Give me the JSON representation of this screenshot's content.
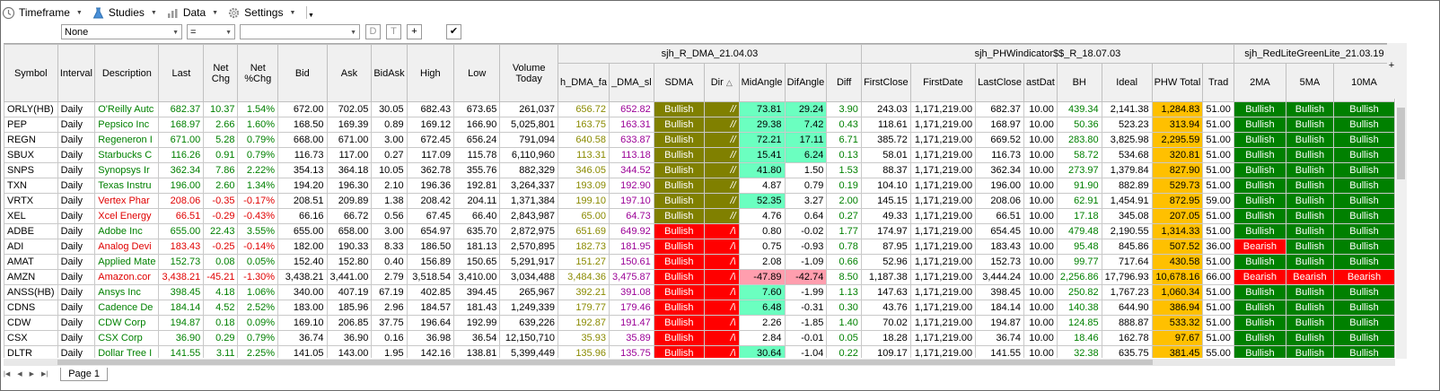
{
  "toolbar": {
    "items": [
      {
        "label": "Timeframe",
        "icon": "clock-icon"
      },
      {
        "label": "Studies",
        "icon": "flask-icon"
      },
      {
        "label": "Data",
        "icon": "bar-chart-icon"
      },
      {
        "label": "Settings",
        "icon": "gear-icon"
      }
    ]
  },
  "filter": {
    "field_value": "None",
    "operator_value": "=",
    "value_value": "",
    "buttons": [
      "D",
      "T",
      "+"
    ],
    "apply_icon": "checkmark-icon"
  },
  "groups": {
    "g1": "sjh_R_DMA_21.04.03",
    "g2": "sjh_PHWindicator$$_R_18.07.03",
    "g3": "sjh_RedLiteGreenLite_21.03.19"
  },
  "columns": [
    "Symbol",
    "Interval",
    "Description",
    "Last",
    "Net Chg",
    "Net %Chg",
    "Bid",
    "Ask",
    "BidAsk",
    "High",
    "Low",
    "Volume Today",
    "h_DMA_fa",
    "_DMA_sl",
    "SDMA",
    "Dir",
    "MidAngle",
    "DifAngle",
    "Diff",
    "FirstClose",
    "FirstDate",
    "LastClose",
    "astDat",
    "BH",
    "Ideal",
    "PHW Total",
    "Trad",
    "2MA",
    "5MA",
    "10MA"
  ],
  "rows": [
    {
      "sym": "ORLY(HB)",
      "int": "Daily",
      "desc": "O'Reilly Autc",
      "last": "682.37",
      "chg": "10.37",
      "pct": "1.54%",
      "bid": "672.00",
      "ask": "702.05",
      "ba": "30.05",
      "high": "682.43",
      "low": "673.65",
      "vol": "261,037",
      "fa": "656.72",
      "sl": "652.82",
      "sdma": "Bullish",
      "dir": "//",
      "mid": "73.81",
      "dif": "29.24",
      "diff": "3.90",
      "fc": "243.03",
      "fd": "1,171,219.00",
      "lc": "682.37",
      "ld": "10.00",
      "bh": "439.34",
      "ideal": "2,141.38",
      "phw": "1,284.83",
      "trad": "51.00",
      "m2": "Bullish",
      "m5": "Bullish",
      "m10": "Bullish",
      "dir_c": "up",
      "mid_bg": true,
      "dif_bg": "aq"
    },
    {
      "sym": "PEP",
      "int": "Daily",
      "desc": "Pepsico Inc",
      "last": "168.97",
      "chg": "2.66",
      "pct": "1.60%",
      "bid": "168.50",
      "ask": "169.39",
      "ba": "0.89",
      "high": "169.12",
      "low": "166.90",
      "vol": "5,025,801",
      "fa": "163.75",
      "sl": "163.31",
      "sdma": "Bullish",
      "dir": "//",
      "mid": "29.38",
      "dif": "7.42",
      "diff": "0.43",
      "fc": "118.61",
      "fd": "1,171,219.00",
      "lc": "168.97",
      "ld": "10.00",
      "bh": "50.36",
      "ideal": "523.23",
      "phw": "313.94",
      "trad": "51.00",
      "m2": "Bullish",
      "m5": "Bullish",
      "m10": "Bullish",
      "dir_c": "up",
      "mid_bg": true,
      "dif_bg": "aq"
    },
    {
      "sym": "REGN",
      "int": "Daily",
      "desc": "Regeneron I",
      "last": "671.00",
      "chg": "5.28",
      "pct": "0.79%",
      "bid": "668.00",
      "ask": "671.00",
      "ba": "3.00",
      "high": "672.45",
      "low": "656.24",
      "vol": "791,094",
      "fa": "640.58",
      "sl": "633.87",
      "sdma": "Bullish",
      "dir": "//",
      "mid": "72.21",
      "dif": "17.11",
      "diff": "6.71",
      "fc": "385.72",
      "fd": "1,171,219.00",
      "lc": "669.52",
      "ld": "10.00",
      "bh": "283.80",
      "ideal": "3,825.98",
      "phw": "2,295.59",
      "trad": "51.00",
      "m2": "Bullish",
      "m5": "Bullish",
      "m10": "Bullish",
      "dir_c": "up",
      "mid_bg": true,
      "dif_bg": "aq"
    },
    {
      "sym": "SBUX",
      "int": "Daily",
      "desc": "Starbucks C",
      "last": "116.26",
      "chg": "0.91",
      "pct": "0.79%",
      "bid": "116.73",
      "ask": "117.00",
      "ba": "0.27",
      "high": "117.09",
      "low": "115.78",
      "vol": "6,110,960",
      "fa": "113.31",
      "sl": "113.18",
      "sdma": "Bullish",
      "dir": "//",
      "mid": "15.41",
      "dif": "6.24",
      "diff": "0.13",
      "fc": "58.01",
      "fd": "1,171,219.00",
      "lc": "116.73",
      "ld": "10.00",
      "bh": "58.72",
      "ideal": "534.68",
      "phw": "320.81",
      "trad": "51.00",
      "m2": "Bullish",
      "m5": "Bullish",
      "m10": "Bullish",
      "dir_c": "up",
      "mid_bg": true,
      "dif_bg": "aq"
    },
    {
      "sym": "SNPS",
      "int": "Daily",
      "desc": "Synopsys Ir",
      "last": "362.34",
      "chg": "7.86",
      "pct": "2.22%",
      "bid": "354.13",
      "ask": "364.18",
      "ba": "10.05",
      "high": "362.78",
      "low": "355.76",
      "vol": "882,329",
      "fa": "346.05",
      "sl": "344.52",
      "sdma": "Bullish",
      "dir": "//",
      "mid": "41.80",
      "dif": "1.50",
      "diff": "1.53",
      "fc": "88.37",
      "fd": "1,171,219.00",
      "lc": "362.34",
      "ld": "10.00",
      "bh": "273.97",
      "ideal": "1,379.84",
      "phw": "827.90",
      "trad": "51.00",
      "m2": "Bullish",
      "m5": "Bullish",
      "m10": "Bullish",
      "dir_c": "up",
      "mid_bg": true,
      "dif_bg": ""
    },
    {
      "sym": "TXN",
      "int": "Daily",
      "desc": "Texas Instru",
      "last": "196.00",
      "chg": "2.60",
      "pct": "1.34%",
      "bid": "194.20",
      "ask": "196.30",
      "ba": "2.10",
      "high": "196.36",
      "low": "192.81",
      "vol": "3,264,337",
      "fa": "193.09",
      "sl": "192.90",
      "sdma": "Bullish",
      "dir": "//",
      "mid": "4.87",
      "dif": "0.79",
      "diff": "0.19",
      "fc": "104.10",
      "fd": "1,171,219.00",
      "lc": "196.00",
      "ld": "10.00",
      "bh": "91.90",
      "ideal": "882.89",
      "phw": "529.73",
      "trad": "51.00",
      "m2": "Bullish",
      "m5": "Bullish",
      "m10": "Bullish",
      "dir_c": "up",
      "mid_bg": false,
      "dif_bg": ""
    },
    {
      "sym": "VRTX",
      "int": "Daily",
      "desc": "Vertex Phar",
      "last": "208.06",
      "chg": "-0.35",
      "pct": "-0.17%",
      "bid": "208.51",
      "ask": "209.89",
      "ba": "1.38",
      "high": "208.42",
      "low": "204.11",
      "vol": "1,371,384",
      "fa": "199.10",
      "sl": "197.10",
      "sdma": "Bullish",
      "dir": "//",
      "mid": "52.35",
      "dif": "3.27",
      "diff": "2.00",
      "fc": "145.15",
      "fd": "1,171,219.00",
      "lc": "208.06",
      "ld": "10.00",
      "bh": "62.91",
      "ideal": "1,454.91",
      "phw": "872.95",
      "trad": "59.00",
      "m2": "Bullish",
      "m5": "Bullish",
      "m10": "Bullish",
      "dir_c": "down",
      "mid_bg": true,
      "dif_bg": ""
    },
    {
      "sym": "XEL",
      "int": "Daily",
      "desc": "Xcel Energy",
      "last": "66.51",
      "chg": "-0.29",
      "pct": "-0.43%",
      "bid": "66.16",
      "ask": "66.72",
      "ba": "0.56",
      "high": "67.45",
      "low": "66.40",
      "vol": "2,843,987",
      "fa": "65.00",
      "sl": "64.73",
      "sdma": "Bullish",
      "dir": "//",
      "mid": "4.76",
      "dif": "0.64",
      "diff": "0.27",
      "fc": "49.33",
      "fd": "1,171,219.00",
      "lc": "66.51",
      "ld": "10.00",
      "bh": "17.18",
      "ideal": "345.08",
      "phw": "207.05",
      "trad": "51.00",
      "m2": "Bullish",
      "m5": "Bullish",
      "m10": "Bullish",
      "dir_c": "down",
      "mid_bg": false,
      "dif_bg": ""
    },
    {
      "sym": "ADBE",
      "int": "Daily",
      "desc": "Adobe Inc",
      "last": "655.00",
      "chg": "22.43",
      "pct": "3.55%",
      "bid": "655.00",
      "ask": "658.00",
      "ba": "3.00",
      "high": "654.97",
      "low": "635.70",
      "vol": "2,872,975",
      "fa": "651.69",
      "sl": "649.92",
      "sdma": "Bullish",
      "dir": "/\\",
      "mid": "0.80",
      "dif": "-0.02",
      "diff": "1.77",
      "fc": "174.97",
      "fd": "1,171,219.00",
      "lc": "654.45",
      "ld": "10.00",
      "bh": "479.48",
      "ideal": "2,190.55",
      "phw": "1,314.33",
      "trad": "51.00",
      "m2": "Bullish",
      "m5": "Bullish",
      "m10": "Bullish",
      "dir_c": "up",
      "mid_bg": false,
      "dif_bg": "",
      "red": true
    },
    {
      "sym": "ADI",
      "int": "Daily",
      "desc": "Analog Devi",
      "last": "183.43",
      "chg": "-0.25",
      "pct": "-0.14%",
      "bid": "182.00",
      "ask": "190.33",
      "ba": "8.33",
      "high": "186.50",
      "low": "181.13",
      "vol": "2,570,895",
      "fa": "182.73",
      "sl": "181.95",
      "sdma": "Bullish",
      "dir": "/\\",
      "mid": "0.75",
      "dif": "-0.93",
      "diff": "0.78",
      "fc": "87.95",
      "fd": "1,171,219.00",
      "lc": "183.43",
      "ld": "10.00",
      "bh": "95.48",
      "ideal": "845.86",
      "phw": "507.52",
      "trad": "36.00",
      "m2": "Bearish",
      "m5": "Bullish",
      "m10": "Bullish",
      "dir_c": "down",
      "mid_bg": false,
      "dif_bg": "",
      "red": true
    },
    {
      "sym": "AMAT",
      "int": "Daily",
      "desc": "Applied Mate",
      "last": "152.73",
      "chg": "0.08",
      "pct": "0.05%",
      "bid": "152.40",
      "ask": "152.80",
      "ba": "0.40",
      "high": "156.89",
      "low": "150.65",
      "vol": "5,291,917",
      "fa": "151.27",
      "sl": "150.61",
      "sdma": "Bullish",
      "dir": "/\\",
      "mid": "2.08",
      "dif": "-1.09",
      "diff": "0.66",
      "fc": "52.96",
      "fd": "1,171,219.00",
      "lc": "152.73",
      "ld": "10.00",
      "bh": "99.77",
      "ideal": "717.64",
      "phw": "430.58",
      "trad": "51.00",
      "m2": "Bullish",
      "m5": "Bullish",
      "m10": "Bullish",
      "dir_c": "up",
      "mid_bg": false,
      "dif_bg": "",
      "red": true
    },
    {
      "sym": "AMZN",
      "int": "Daily",
      "desc": "Amazon.cor",
      "last": "3,438.21",
      "chg": "-45.21",
      "pct": "-1.30%",
      "bid": "3,438.21",
      "ask": "3,441.00",
      "ba": "2.79",
      "high": "3,518.54",
      "low": "3,410.00",
      "vol": "3,034,488",
      "fa": "3,484.36",
      "sl": "3,475.87",
      "sdma": "Bullish",
      "dir": "/\\",
      "mid": "-47.89",
      "dif": "-42.74",
      "diff": "8.50",
      "fc": "1,187.38",
      "fd": "1,171,219.00",
      "lc": "3,444.24",
      "ld": "10.00",
      "bh": "2,256.86",
      "ideal": "17,796.93",
      "phw": "10,678.16",
      "trad": "66.00",
      "m2": "Bearish",
      "m5": "Bearish",
      "m10": "Bearish",
      "dir_c": "down",
      "mid_bg": "pk",
      "dif_bg": "pk",
      "red": true
    },
    {
      "sym": "ANSS(HB)",
      "int": "Daily",
      "desc": "Ansys Inc",
      "last": "398.45",
      "chg": "4.18",
      "pct": "1.06%",
      "bid": "340.00",
      "ask": "407.19",
      "ba": "67.19",
      "high": "402.85",
      "low": "394.45",
      "vol": "265,967",
      "fa": "392.21",
      "sl": "391.08",
      "sdma": "Bullish",
      "dir": "/\\",
      "mid": "7.60",
      "dif": "-1.99",
      "diff": "1.13",
      "fc": "147.63",
      "fd": "1,171,219.00",
      "lc": "398.45",
      "ld": "10.00",
      "bh": "250.82",
      "ideal": "1,767.23",
      "phw": "1,060.34",
      "trad": "51.00",
      "m2": "Bullish",
      "m5": "Bullish",
      "m10": "Bullish",
      "dir_c": "up",
      "mid_bg": true,
      "dif_bg": "",
      "red": true
    },
    {
      "sym": "CDNS",
      "int": "Daily",
      "desc": "Cadence De",
      "last": "184.14",
      "chg": "4.52",
      "pct": "2.52%",
      "bid": "183.00",
      "ask": "185.96",
      "ba": "2.96",
      "high": "184.57",
      "low": "181.43",
      "vol": "1,249,339",
      "fa": "179.77",
      "sl": "179.46",
      "sdma": "Bullish",
      "dir": "/\\",
      "mid": "6.48",
      "dif": "-0.31",
      "diff": "0.30",
      "fc": "43.76",
      "fd": "1,171,219.00",
      "lc": "184.14",
      "ld": "10.00",
      "bh": "140.38",
      "ideal": "644.90",
      "phw": "386.94",
      "trad": "51.00",
      "m2": "Bullish",
      "m5": "Bullish",
      "m10": "Bullish",
      "dir_c": "up",
      "mid_bg": true,
      "dif_bg": "",
      "red": true
    },
    {
      "sym": "CDW",
      "int": "Daily",
      "desc": "CDW Corp",
      "last": "194.87",
      "chg": "0.18",
      "pct": "0.09%",
      "bid": "169.10",
      "ask": "206.85",
      "ba": "37.75",
      "high": "196.64",
      "low": "192.99",
      "vol": "639,226",
      "fa": "192.87",
      "sl": "191.47",
      "sdma": "Bullish",
      "dir": "/\\",
      "mid": "2.26",
      "dif": "-1.85",
      "diff": "1.40",
      "fc": "70.02",
      "fd": "1,171,219.00",
      "lc": "194.87",
      "ld": "10.00",
      "bh": "124.85",
      "ideal": "888.87",
      "phw": "533.32",
      "trad": "51.00",
      "m2": "Bullish",
      "m5": "Bullish",
      "m10": "Bullish",
      "dir_c": "up",
      "mid_bg": false,
      "dif_bg": "",
      "red": true
    },
    {
      "sym": "CSX",
      "int": "Daily",
      "desc": "CSX Corp",
      "last": "36.90",
      "chg": "0.29",
      "pct": "0.79%",
      "bid": "36.74",
      "ask": "36.90",
      "ba": "0.16",
      "high": "36.98",
      "low": "36.54",
      "vol": "12,150,710",
      "fa": "35.93",
      "sl": "35.89",
      "sdma": "Bullish",
      "dir": "/\\",
      "mid": "2.84",
      "dif": "-0.01",
      "diff": "0.05",
      "fc": "18.28",
      "fd": "1,171,219.00",
      "lc": "36.74",
      "ld": "10.00",
      "bh": "18.46",
      "ideal": "162.78",
      "phw": "97.67",
      "trad": "51.00",
      "m2": "Bullish",
      "m5": "Bullish",
      "m10": "Bullish",
      "dir_c": "up",
      "mid_bg": false,
      "dif_bg": "",
      "red": true
    },
    {
      "sym": "DLTR",
      "int": "Daily",
      "desc": "Dollar Tree I",
      "last": "141.55",
      "chg": "3.11",
      "pct": "2.25%",
      "bid": "141.05",
      "ask": "143.00",
      "ba": "1.95",
      "high": "142.16",
      "low": "138.81",
      "vol": "5,399,449",
      "fa": "135.96",
      "sl": "135.75",
      "sdma": "Bullish",
      "dir": "/\\",
      "mid": "30.64",
      "dif": "-1.04",
      "diff": "0.22",
      "fc": "109.17",
      "fd": "1,171,219.00",
      "lc": "141.55",
      "ld": "10.00",
      "bh": "32.38",
      "ideal": "635.75",
      "phw": "381.45",
      "trad": "55.00",
      "m2": "Bullish",
      "m5": "Bullish",
      "m10": "Bullish",
      "dir_c": "up",
      "mid_bg": true,
      "dif_bg": "",
      "red": true
    }
  ],
  "footer": {
    "page_tab": "Page 1",
    "add_column": "+"
  }
}
